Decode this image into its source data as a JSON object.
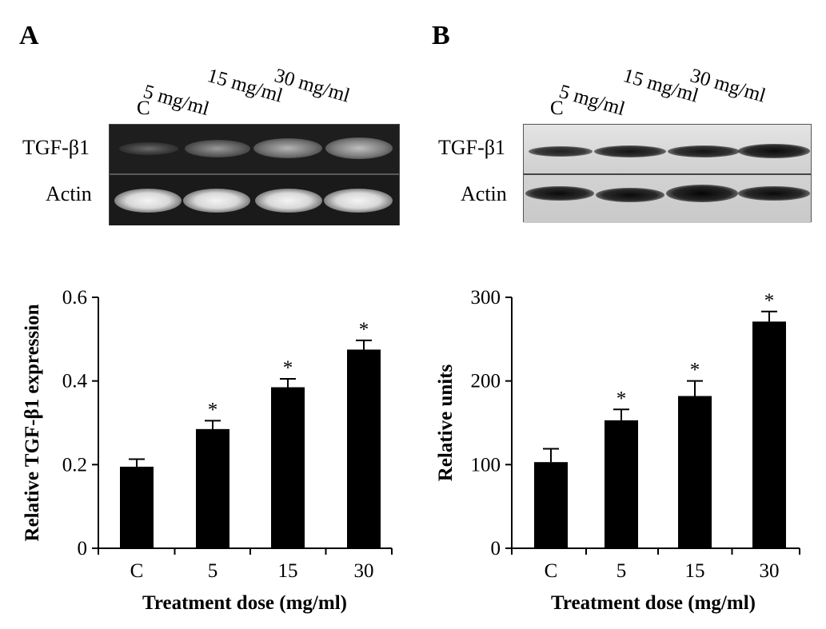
{
  "panels": [
    {
      "letter": "A",
      "blot": {
        "lanes": [
          "C",
          "5 mg/ml",
          "15 mg/ml",
          "30 mg/ml"
        ],
        "rows": [
          "TGF-β1",
          "Actin"
        ],
        "style": "gel-dark"
      },
      "chart_data": {
        "type": "bar",
        "categories": [
          "C",
          "5",
          "15",
          "30"
        ],
        "values": [
          0.195,
          0.285,
          0.385,
          0.475
        ],
        "errors": [
          0.018,
          0.02,
          0.02,
          0.022
        ],
        "annotations": [
          "",
          "*",
          "*",
          "*"
        ],
        "ylim": [
          0,
          0.6
        ],
        "yticks": [
          0,
          0.2,
          0.4,
          0.6
        ],
        "ytick_labels": [
          "0",
          "0.2",
          "0.4",
          "0.6"
        ],
        "xlabel": "Treatment dose (mg/ml)",
        "ylabel": "Relative TGF-β1 expression",
        "bar_color": "#000000"
      }
    },
    {
      "letter": "B",
      "blot": {
        "lanes": [
          "C",
          "5 mg/ml",
          "15 mg/ml",
          "30 mg/ml"
        ],
        "rows": [
          "TGF-β1",
          "Actin"
        ],
        "style": "western-light"
      },
      "chart_data": {
        "type": "bar",
        "categories": [
          "C",
          "5",
          "15",
          "30"
        ],
        "values": [
          103,
          153,
          182,
          271
        ],
        "errors": [
          16,
          13,
          18,
          12
        ],
        "annotations": [
          "",
          "*",
          "*",
          "*"
        ],
        "ylim": [
          0,
          300
        ],
        "yticks": [
          0,
          100,
          200,
          300
        ],
        "ytick_labels": [
          "0",
          "100",
          "200",
          "300"
        ],
        "xlabel": "Treatment dose (mg/ml)",
        "ylabel": "Relative units",
        "bar_color": "#000000"
      }
    }
  ]
}
